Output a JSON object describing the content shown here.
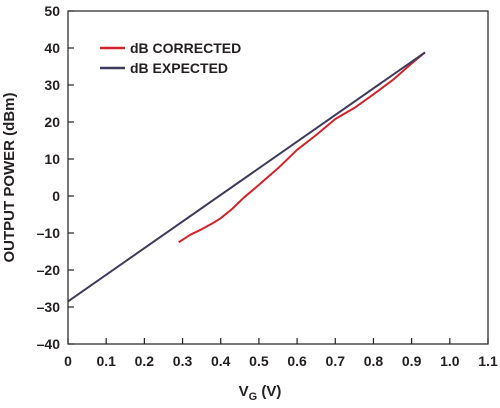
{
  "chart_data": {
    "type": "line",
    "xlabel_main": "V",
    "xlabel_sub": "G",
    "xlabel_unit": " (V)",
    "ylabel": "OUTPUT POWER (dBm)",
    "xlim": [
      0,
      1.1
    ],
    "ylim": [
      -40,
      50
    ],
    "x_ticks": [
      0,
      0.1,
      0.2,
      0.3,
      0.4,
      0.5,
      0.6,
      0.7,
      0.8,
      0.9,
      1.0,
      1.1
    ],
    "x_tick_labels": [
      "0",
      "0.1",
      "0.2",
      "0.3",
      "0.4",
      "0.5",
      "0.6",
      "0.7",
      "0.8",
      "0.9",
      "1.0",
      "1.1"
    ],
    "y_ticks": [
      -40,
      -30,
      -20,
      -10,
      0,
      10,
      20,
      30,
      40,
      50
    ],
    "y_tick_labels": [
      "–40",
      "–30",
      "–20",
      "–10",
      "0",
      "10",
      "20",
      "30",
      "40",
      "50"
    ],
    "grid": false,
    "legend_position": "top-left",
    "series": [
      {
        "name": "dB CORRECTED",
        "color": "#d2232a",
        "x": [
          0.29,
          0.32,
          0.35,
          0.38,
          0.4,
          0.43,
          0.46,
          0.5,
          0.55,
          0.6,
          0.65,
          0.7,
          0.75,
          0.8,
          0.85,
          0.9,
          0.935
        ],
        "y": [
          -12.5,
          -10.5,
          -9.0,
          -7.3,
          -6.0,
          -3.5,
          -0.5,
          3.0,
          7.5,
          12.5,
          16.5,
          20.8,
          23.8,
          27.5,
          31.3,
          35.8,
          38.8
        ]
      },
      {
        "name": "dB EXPECTED",
        "color": "#3d3a5c",
        "x": [
          0.0,
          0.935
        ],
        "y": [
          -28.5,
          38.8
        ]
      }
    ]
  }
}
